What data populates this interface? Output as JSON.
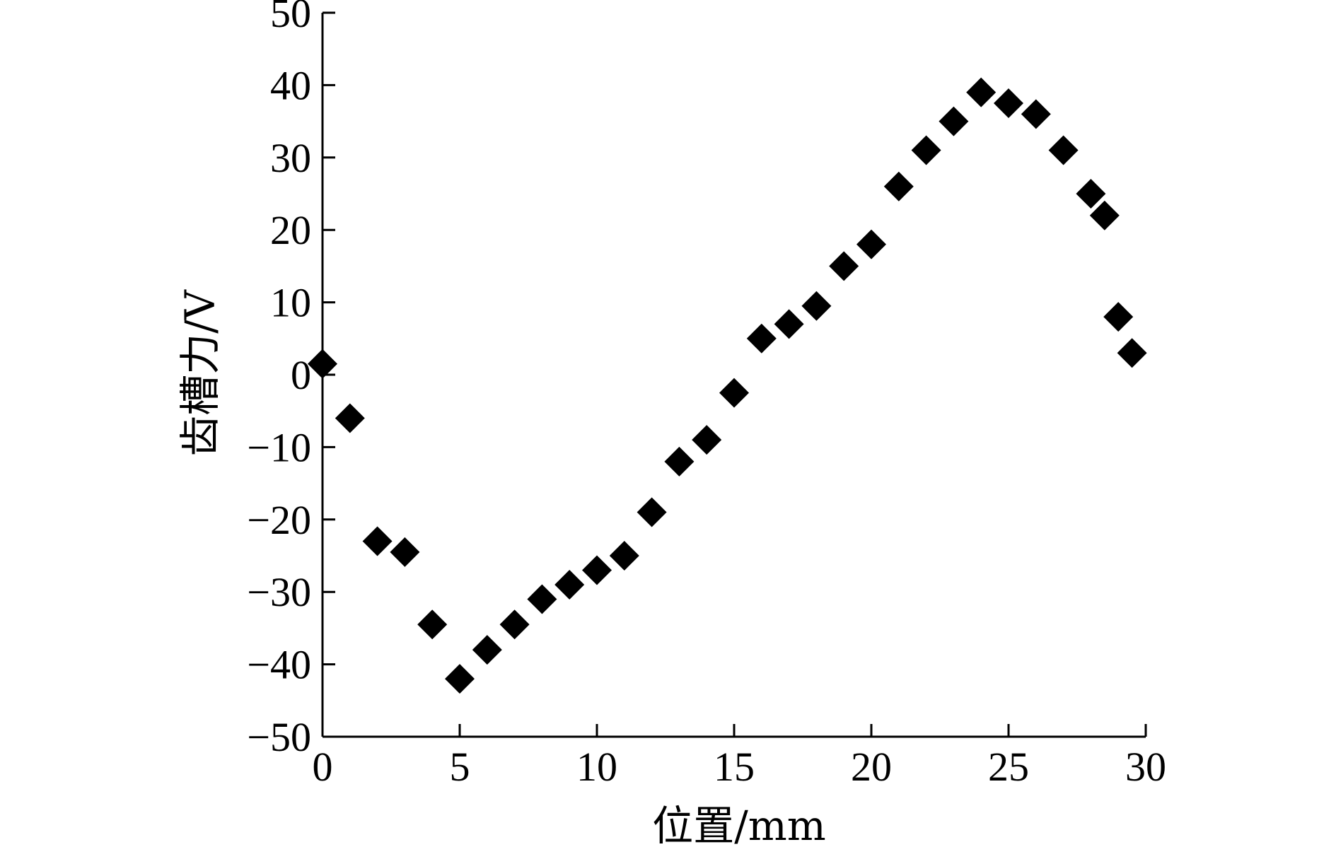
{
  "chart_data": {
    "type": "scatter",
    "xlabel": "位置/mm",
    "ylabel": "齿槽力/V",
    "xlim": [
      0,
      30
    ],
    "ylim": [
      -50,
      50
    ],
    "xticks": [
      "0",
      "5",
      "10",
      "15",
      "20",
      "25",
      "30"
    ],
    "yticks": [
      "50",
      "40",
      "30",
      "20",
      "10",
      "0",
      "−10",
      "−20",
      "−30",
      "−40",
      "−50"
    ],
    "xtick_values": [
      0,
      5,
      10,
      15,
      20,
      25,
      30
    ],
    "ytick_values": [
      50,
      40,
      30,
      20,
      10,
      0,
      -10,
      -20,
      -30,
      -40,
      -50
    ],
    "grid": false,
    "marker": "diamond",
    "marker_color": "#000000",
    "series": [
      {
        "x": [
          0,
          1,
          2,
          3,
          4,
          5,
          6,
          7,
          8,
          9,
          10,
          11,
          12,
          13,
          14,
          15,
          16,
          17,
          18,
          19,
          20,
          21,
          22,
          23,
          24,
          25,
          26,
          27,
          28,
          28.5,
          29,
          29.5
        ],
        "y": [
          1.5,
          -6,
          -23,
          -24.5,
          -34.5,
          -42,
          -38,
          -34.5,
          -31,
          -29,
          -27,
          -25,
          -19,
          -12,
          -9,
          -2.5,
          5,
          7,
          9.5,
          15,
          18,
          26,
          31,
          35,
          39,
          37.5,
          36,
          31,
          25,
          22,
          8,
          3
        ]
      }
    ]
  }
}
